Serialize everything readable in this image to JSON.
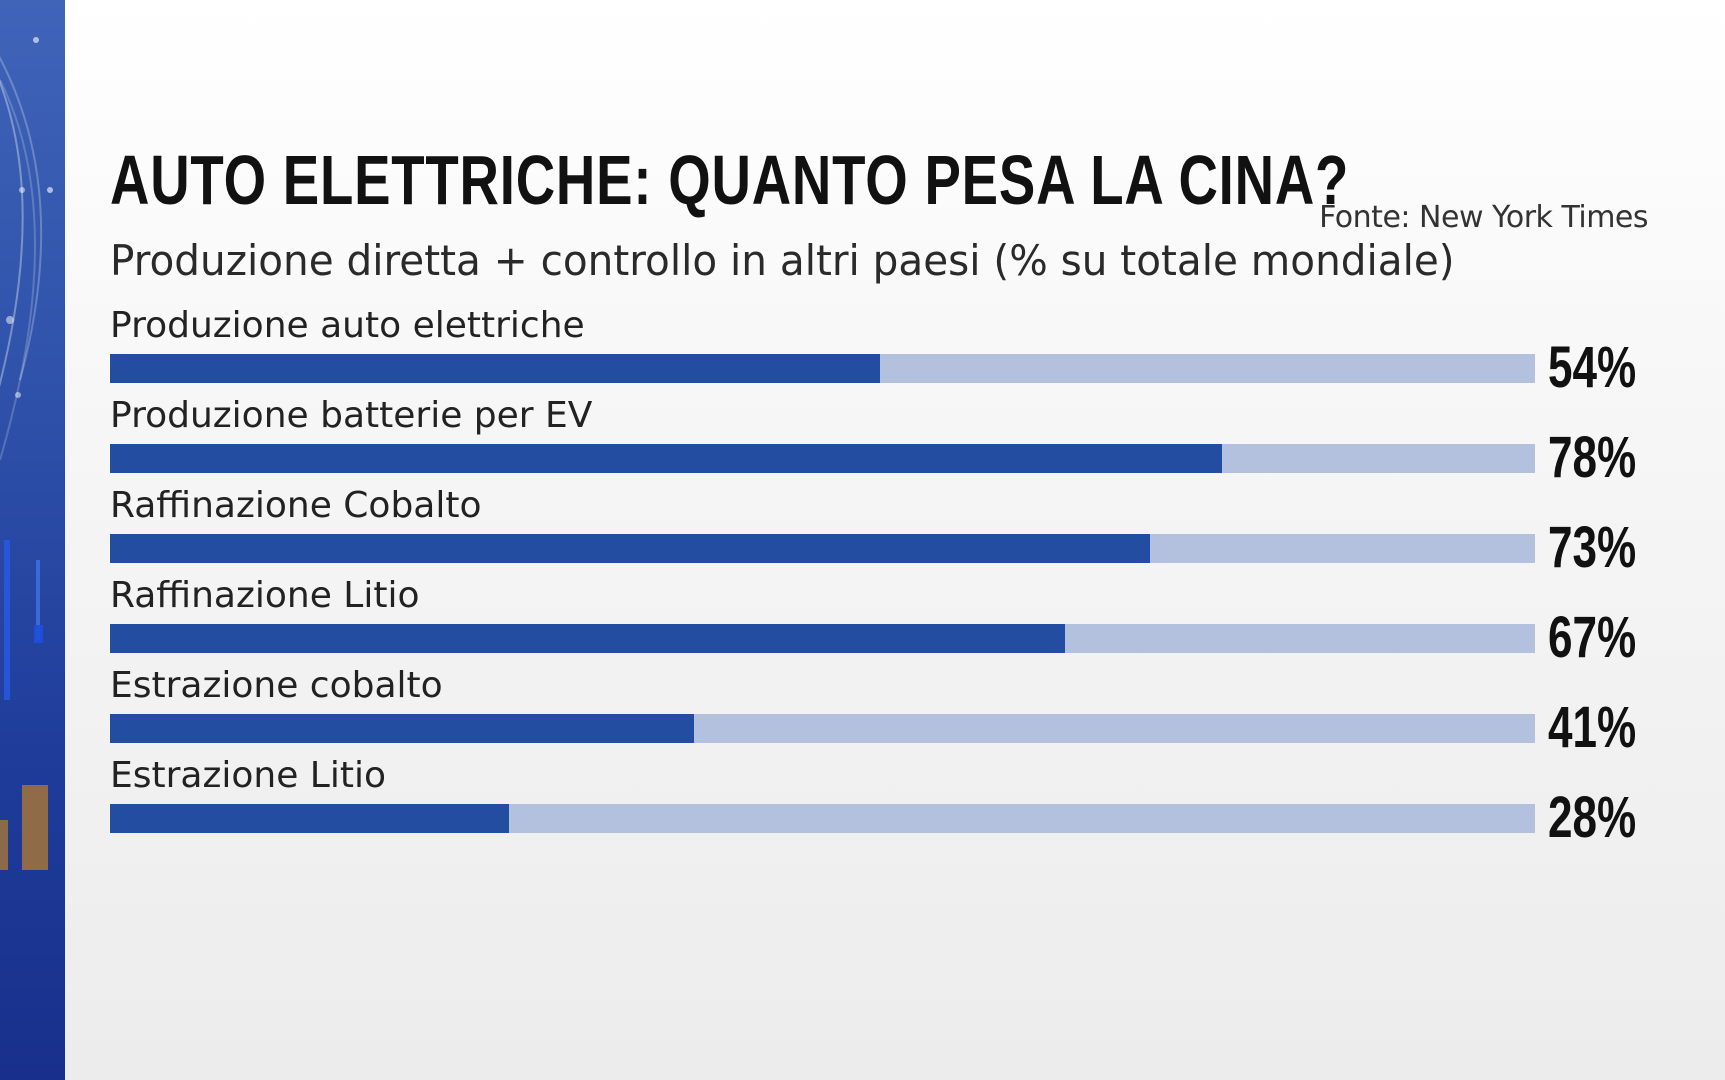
{
  "header": {
    "title": "AUTO ELETTRICHE: QUANTO PESA LA CINA?",
    "source": "Fonte: New York Times",
    "subtitle": "Produzione diretta + controllo in altri paesi (% su totale mondiale)"
  },
  "colors": {
    "bar_fill": "#224da0",
    "bar_track": "#b3c1df",
    "side_panel": "#2d4fa8"
  },
  "chart_data": {
    "type": "bar",
    "orientation": "horizontal",
    "categories": [
      "Produzione auto elettriche",
      "Produzione batterie per EV",
      "Raffinazione Cobalto",
      "Raffinazione Litio",
      "Estrazione cobalto",
      "Estrazione Litio"
    ],
    "values": [
      54,
      78,
      73,
      67,
      41,
      28
    ],
    "value_labels": [
      "54%",
      "78%",
      "73%",
      "67%",
      "41%",
      "28%"
    ],
    "xlim": [
      0,
      100
    ],
    "grid": false
  }
}
